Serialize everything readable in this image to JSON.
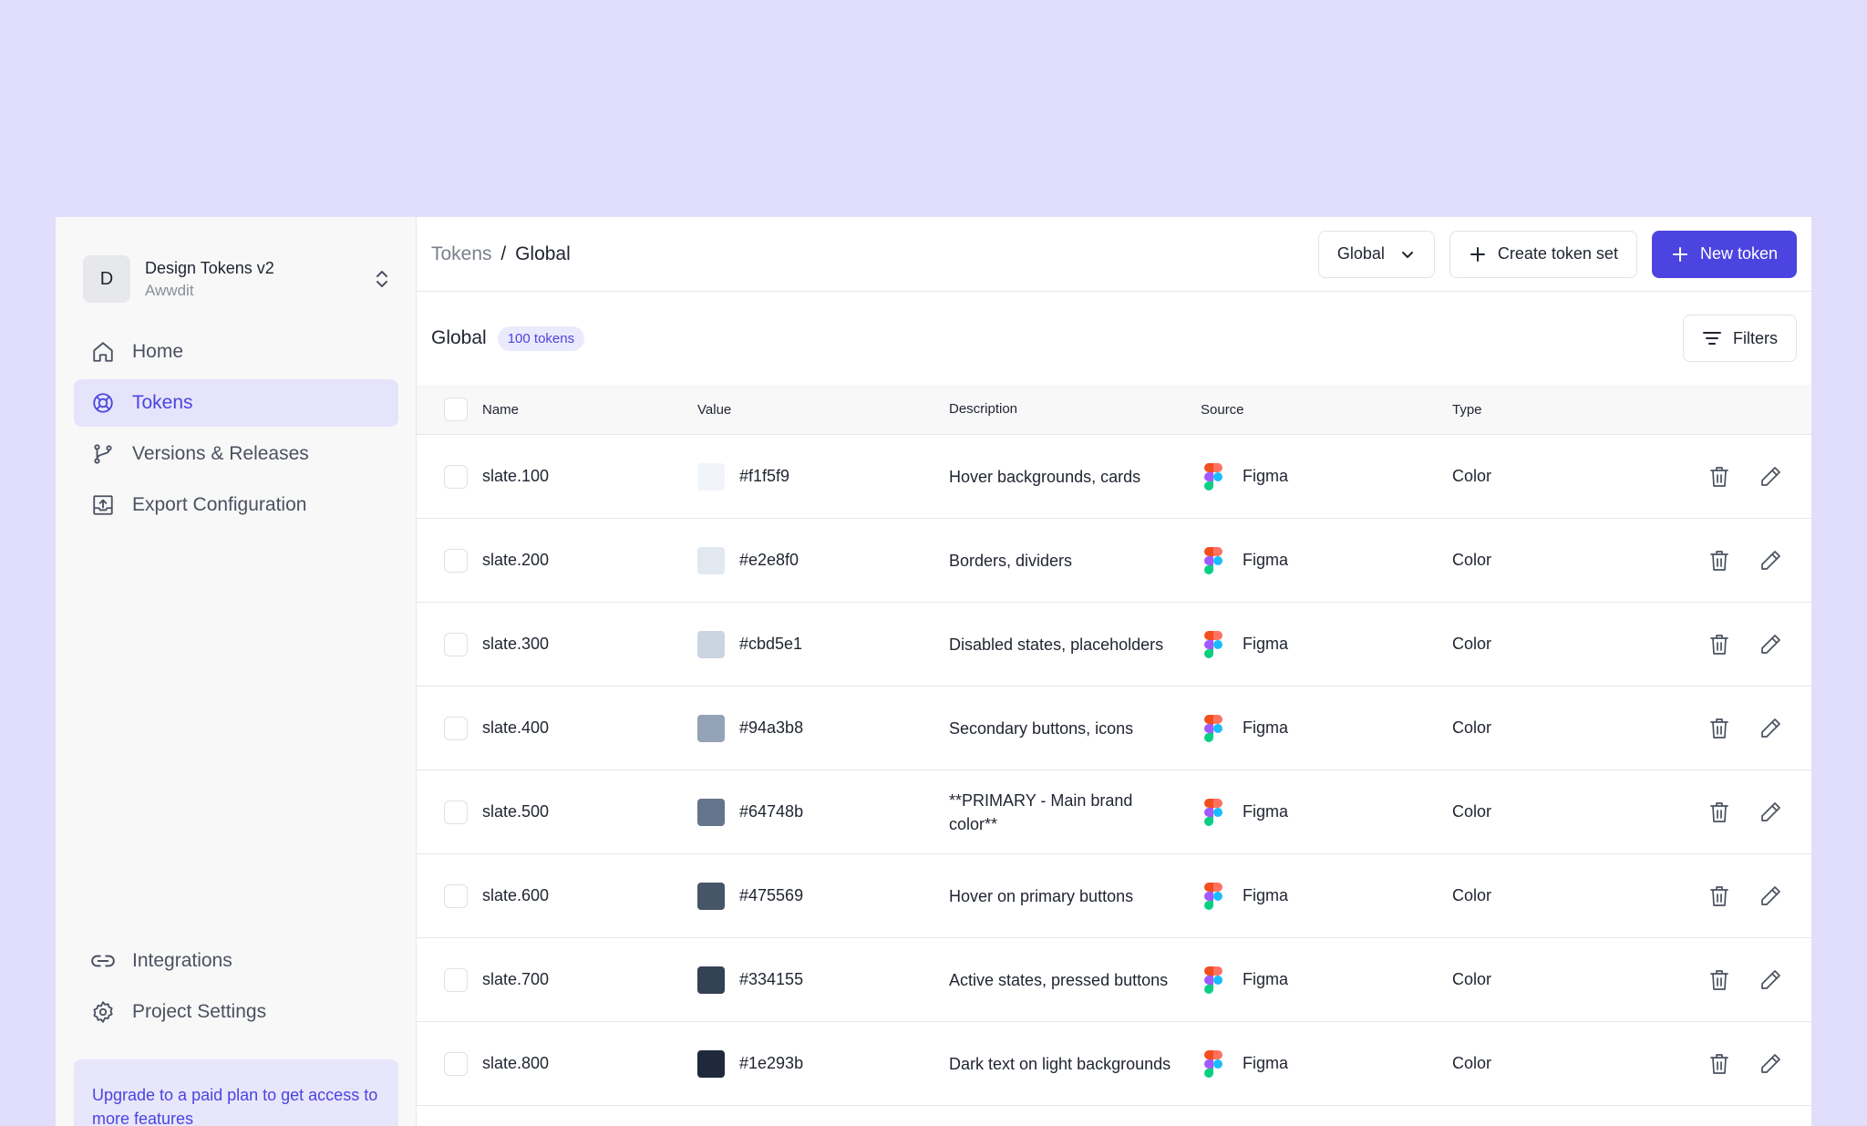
{
  "project": {
    "initial": "D",
    "name": "Design Tokens v2",
    "org": "Awwdit"
  },
  "nav": [
    {
      "label": "Home",
      "icon": "home-icon"
    },
    {
      "label": "Tokens",
      "icon": "tokens-icon",
      "active": true
    },
    {
      "label": "Versions & Releases",
      "icon": "git-branch-icon"
    },
    {
      "label": "Export Configuration",
      "icon": "export-icon"
    }
  ],
  "nav_bottom": [
    {
      "label": "Integrations",
      "icon": "link-icon"
    },
    {
      "label": "Project Settings",
      "icon": "gear-icon"
    }
  ],
  "upgrade_text": "Upgrade to a paid plan to get access to more features",
  "breadcrumb": {
    "parent": "Tokens",
    "separator": "/",
    "current": "Global"
  },
  "toolbar": {
    "set_select": "Global",
    "create_set_label": "Create token set",
    "new_token_label": "New token"
  },
  "section": {
    "title": "Global",
    "count_badge": "100 tokens",
    "filters_label": "Filters"
  },
  "columns": {
    "name": "Name",
    "value": "Value",
    "description": "Description",
    "source": "Source",
    "type": "Type"
  },
  "rows": [
    {
      "name": "slate.100",
      "value": "#f1f5f9",
      "description": "Hover backgrounds, cards",
      "source": "Figma",
      "type": "Color"
    },
    {
      "name": "slate.200",
      "value": "#e2e8f0",
      "description": "Borders, dividers",
      "source": "Figma",
      "type": "Color"
    },
    {
      "name": "slate.300",
      "value": "#cbd5e1",
      "description": "Disabled states, placeholders",
      "source": "Figma",
      "type": "Color"
    },
    {
      "name": "slate.400",
      "value": "#94a3b8",
      "description": "Secondary buttons, icons",
      "source": "Figma",
      "type": "Color"
    },
    {
      "name": "slate.500",
      "value": "#64748b",
      "description": "**PRIMARY - Main brand color**",
      "source": "Figma",
      "type": "Color"
    },
    {
      "name": "slate.600",
      "value": "#475569",
      "description": "Hover on primary buttons",
      "source": "Figma",
      "type": "Color"
    },
    {
      "name": "slate.700",
      "value": "#334155",
      "description": "Active states, pressed buttons",
      "source": "Figma",
      "type": "Color"
    },
    {
      "name": "slate.800",
      "value": "#1e293b",
      "description": "Dark text on light backgrounds",
      "source": "Figma",
      "type": "Color"
    }
  ],
  "colors": {
    "accent": "#4b44e0",
    "background": "#e1defb"
  }
}
